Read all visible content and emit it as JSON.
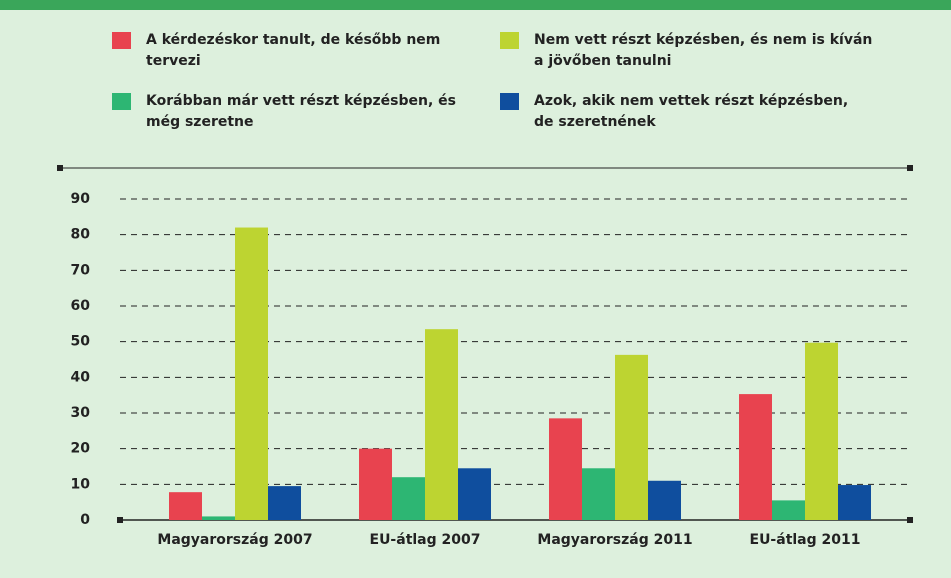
{
  "chart_data": {
    "type": "bar",
    "categories": [
      "Magyarország 2007",
      "EU-átlag 2007",
      "Magyarország 2011",
      "EU-átlag 2011"
    ],
    "series": [
      {
        "name": "A kérdezéskor tanult, de később nem tervezi",
        "color": "#e8434f",
        "values": [
          7.8,
          20,
          28.5,
          35.3
        ]
      },
      {
        "name": "Korábban már vett részt képzésben, és még szeretne",
        "color": "#2db673",
        "values": [
          1,
          12,
          14.5,
          5.5
        ]
      },
      {
        "name": "Nem vett részt képzésben, és nem is kíván a jövőben tanulni",
        "color": "#bdd431",
        "values": [
          82,
          53.5,
          46.3,
          49.7
        ]
      },
      {
        "name": "Azok, akik nem vettek részt képzésben, de szeretnének",
        "color": "#0f4e9e",
        "values": [
          9.5,
          14.5,
          11,
          9.8
        ]
      }
    ],
    "ylim": [
      0,
      90
    ],
    "yticks": [
      0,
      10,
      20,
      30,
      40,
      50,
      60,
      70,
      80,
      90
    ],
    "grid": true
  }
}
